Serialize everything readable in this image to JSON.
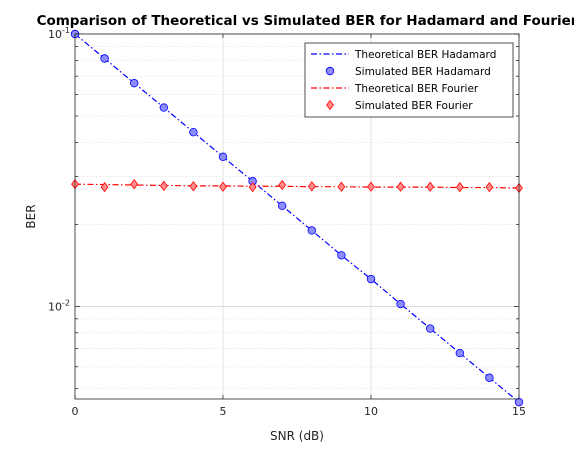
{
  "chart_data": {
    "type": "line",
    "title": "Comparison of Theoretical vs Simulated BER for Hadamard and Fourier",
    "xlabel": "SNR (dB)",
    "ylabel": "BER",
    "xlim": [
      0,
      15
    ],
    "ylim": [
      0.00457,
      0.1
    ],
    "yscale": "log",
    "grid": true,
    "legend_position": "top-right",
    "x_ticks": [
      "0",
      "5",
      "10",
      "15"
    ],
    "y_ticks": [
      {
        "value": 0.1,
        "base": "10",
        "exp": "-1"
      },
      {
        "value": 0.01,
        "base": "10",
        "exp": "-2"
      }
    ],
    "x": [
      0,
      1,
      2,
      3,
      4,
      5,
      6,
      7,
      8,
      9,
      10,
      11,
      12,
      13,
      14,
      15
    ],
    "series": [
      {
        "name": "Theoretical BER Hadamard",
        "style": "dash-dot",
        "color": "#0000ff",
        "values": [
          0.1,
          0.0813,
          0.066,
          0.0537,
          0.0436,
          0.0354,
          0.0288,
          0.0234,
          0.019,
          0.0154,
          0.0126,
          0.0102,
          0.00829,
          0.00674,
          0.00547,
          0.00445
        ]
      },
      {
        "name": "Simulated BER Hadamard",
        "style": "marker-circle",
        "color": "#0000ff",
        "fill": "#8c8cff",
        "values": [
          0.1,
          0.0813,
          0.066,
          0.0537,
          0.0436,
          0.0354,
          0.0288,
          0.0234,
          0.019,
          0.0154,
          0.0126,
          0.0102,
          0.00829,
          0.00674,
          0.00547,
          0.00445
        ]
      },
      {
        "name": "Theoretical BER Fourier",
        "style": "dash-dot",
        "color": "#ff0000",
        "values": [
          0.0281,
          0.028,
          0.0279,
          0.0278,
          0.0277,
          0.0277,
          0.0276,
          0.0276,
          0.0275,
          0.0275,
          0.0274,
          0.0274,
          0.0274,
          0.0273,
          0.0273,
          0.0272
        ]
      },
      {
        "name": "Simulated BER Fourier",
        "style": "marker-diamond",
        "color": "#ff0000",
        "fill": "#ff8c8c",
        "values": [
          0.0281,
          0.0274,
          0.0281,
          0.0277,
          0.0276,
          0.0275,
          0.0274,
          0.0279,
          0.0276,
          0.0275,
          0.0275,
          0.0275,
          0.0275,
          0.0274,
          0.0274,
          0.0272
        ]
      }
    ]
  }
}
